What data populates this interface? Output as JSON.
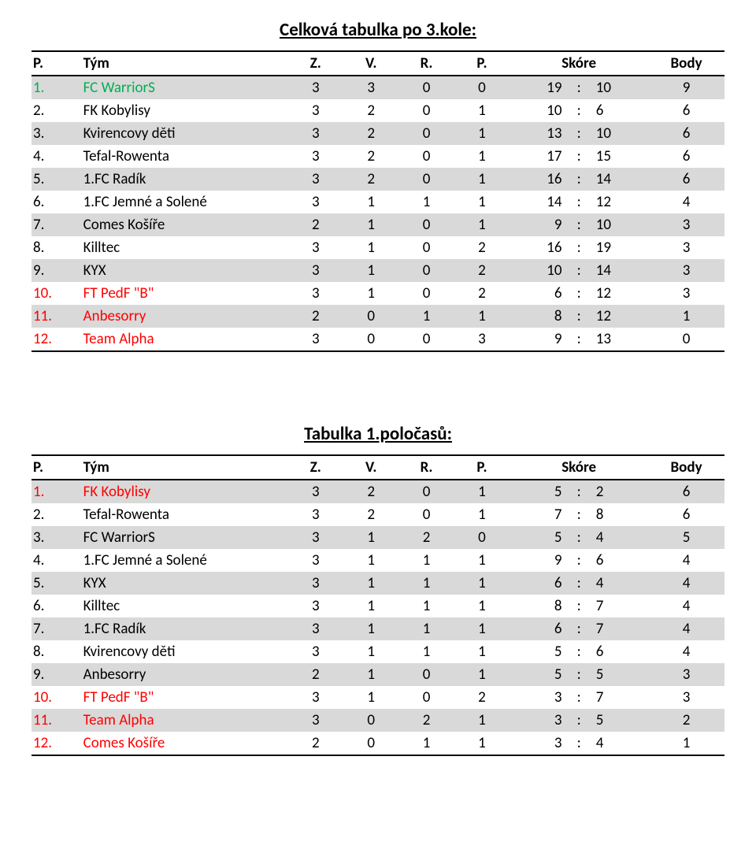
{
  "colors": {
    "row_stripe": "#d9d9d9",
    "border": "#000000",
    "special_team_colors": {
      "table1": {
        "0": "#00b050",
        "9": "#ff0000",
        "10": "#ff0000",
        "11": "#ff0000"
      },
      "table2": {
        "0": "#ff0000",
        "9": "#ff0000",
        "10": "#ff0000",
        "11": "#ff0000"
      }
    }
  },
  "headers": {
    "rank": "P.",
    "team": "Tým",
    "z": "Z.",
    "v": "V.",
    "r": "R.",
    "p": "P.",
    "score": "Skóre",
    "body": "Body"
  },
  "tables": [
    {
      "title": "Celková tabulka po 3.kole:",
      "rows": [
        {
          "rank": "1.",
          "team": "FC WarriorS",
          "z": 3,
          "v": 3,
          "r": 0,
          "p": 0,
          "sf": 19,
          "sa": 10,
          "pts": 9
        },
        {
          "rank": "2.",
          "team": "FK Kobylisy",
          "z": 3,
          "v": 2,
          "r": 0,
          "p": 1,
          "sf": 10,
          "sa": 6,
          "pts": 6
        },
        {
          "rank": "3.",
          "team": "Kvirencovy děti",
          "z": 3,
          "v": 2,
          "r": 0,
          "p": 1,
          "sf": 13,
          "sa": 10,
          "pts": 6
        },
        {
          "rank": "4.",
          "team": "Tefal-Rowenta",
          "z": 3,
          "v": 2,
          "r": 0,
          "p": 1,
          "sf": 17,
          "sa": 15,
          "pts": 6
        },
        {
          "rank": "5.",
          "team": "1.FC Radík",
          "z": 3,
          "v": 2,
          "r": 0,
          "p": 1,
          "sf": 16,
          "sa": 14,
          "pts": 6
        },
        {
          "rank": "6.",
          "team": "1.FC Jemné a Solené",
          "z": 3,
          "v": 1,
          "r": 1,
          "p": 1,
          "sf": 14,
          "sa": 12,
          "pts": 4
        },
        {
          "rank": "7.",
          "team": "Comes Košíře",
          "z": 2,
          "v": 1,
          "r": 0,
          "p": 1,
          "sf": 9,
          "sa": 10,
          "pts": 3
        },
        {
          "rank": "8.",
          "team": "Killtec",
          "z": 3,
          "v": 1,
          "r": 0,
          "p": 2,
          "sf": 16,
          "sa": 19,
          "pts": 3
        },
        {
          "rank": "9.",
          "team": "KYX",
          "z": 3,
          "v": 1,
          "r": 0,
          "p": 2,
          "sf": 10,
          "sa": 14,
          "pts": 3
        },
        {
          "rank": "10.",
          "team": "FT PedF \"B\"",
          "z": 3,
          "v": 1,
          "r": 0,
          "p": 2,
          "sf": 6,
          "sa": 12,
          "pts": 3
        },
        {
          "rank": "11.",
          "team": "Anbesorry",
          "z": 2,
          "v": 0,
          "r": 1,
          "p": 1,
          "sf": 8,
          "sa": 12,
          "pts": 1
        },
        {
          "rank": "12.",
          "team": "Team Alpha",
          "z": 3,
          "v": 0,
          "r": 0,
          "p": 3,
          "sf": 9,
          "sa": 13,
          "pts": 0
        }
      ]
    },
    {
      "title": "Tabulka 1.poločasů:",
      "rows": [
        {
          "rank": "1.",
          "team": "FK Kobylisy",
          "z": 3,
          "v": 2,
          "r": 0,
          "p": 1,
          "sf": 5,
          "sa": 2,
          "pts": 6
        },
        {
          "rank": "2.",
          "team": "Tefal-Rowenta",
          "z": 3,
          "v": 2,
          "r": 0,
          "p": 1,
          "sf": 7,
          "sa": 8,
          "pts": 6
        },
        {
          "rank": "3.",
          "team": "FC WarriorS",
          "z": 3,
          "v": 1,
          "r": 2,
          "p": 0,
          "sf": 5,
          "sa": 4,
          "pts": 5
        },
        {
          "rank": "4.",
          "team": "1.FC Jemné a Solené",
          "z": 3,
          "v": 1,
          "r": 1,
          "p": 1,
          "sf": 9,
          "sa": 6,
          "pts": 4
        },
        {
          "rank": "5.",
          "team": "KYX",
          "z": 3,
          "v": 1,
          "r": 1,
          "p": 1,
          "sf": 6,
          "sa": 4,
          "pts": 4
        },
        {
          "rank": "6.",
          "team": "Killtec",
          "z": 3,
          "v": 1,
          "r": 1,
          "p": 1,
          "sf": 8,
          "sa": 7,
          "pts": 4
        },
        {
          "rank": "7.",
          "team": "1.FC Radík",
          "z": 3,
          "v": 1,
          "r": 1,
          "p": 1,
          "sf": 6,
          "sa": 7,
          "pts": 4
        },
        {
          "rank": "8.",
          "team": "Kvirencovy děti",
          "z": 3,
          "v": 1,
          "r": 1,
          "p": 1,
          "sf": 5,
          "sa": 6,
          "pts": 4
        },
        {
          "rank": "9.",
          "team": "Anbesorry",
          "z": 2,
          "v": 1,
          "r": 0,
          "p": 1,
          "sf": 5,
          "sa": 5,
          "pts": 3
        },
        {
          "rank": "10.",
          "team": "FT PedF \"B\"",
          "z": 3,
          "v": 1,
          "r": 0,
          "p": 2,
          "sf": 3,
          "sa": 7,
          "pts": 3
        },
        {
          "rank": "11.",
          "team": "Team Alpha",
          "z": 3,
          "v": 0,
          "r": 2,
          "p": 1,
          "sf": 3,
          "sa": 5,
          "pts": 2
        },
        {
          "rank": "12.",
          "team": "Comes Košíře",
          "z": 2,
          "v": 0,
          "r": 1,
          "p": 1,
          "sf": 3,
          "sa": 4,
          "pts": 1
        }
      ]
    }
  ]
}
